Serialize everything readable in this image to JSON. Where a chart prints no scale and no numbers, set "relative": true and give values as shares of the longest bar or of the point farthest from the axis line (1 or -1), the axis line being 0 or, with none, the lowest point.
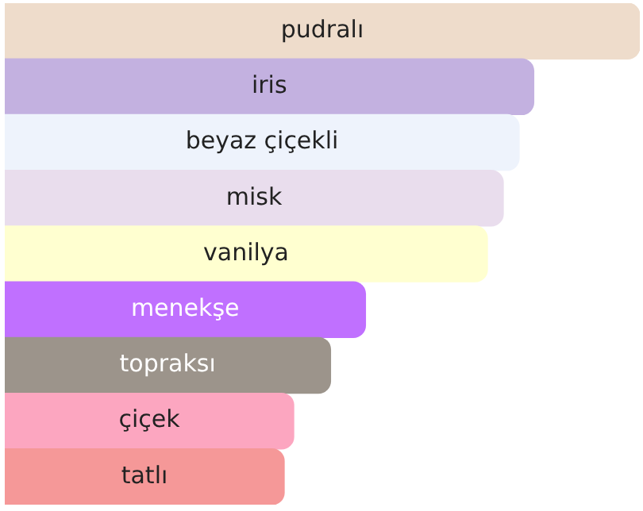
{
  "chart_data": {
    "type": "bar",
    "orientation": "horizontal",
    "relative": true,
    "categories": [
      "pudralı",
      "iris",
      "beyaz çiçekli",
      "misk",
      "vanilya",
      "menekşe",
      "topraksı",
      "çiçek",
      "tatlı"
    ],
    "values": [
      1,
      0.833,
      0.81,
      0.785,
      0.76,
      0.568,
      0.513,
      0.455,
      0.44
    ],
    "colors": [
      "#eedccb",
      "#c3b1e0",
      "#eef3fc",
      "#e9dded",
      "#ffffd0",
      "#c070ff",
      "#9c948b",
      "#fca6c0",
      "#f59898"
    ],
    "legend": false
  }
}
